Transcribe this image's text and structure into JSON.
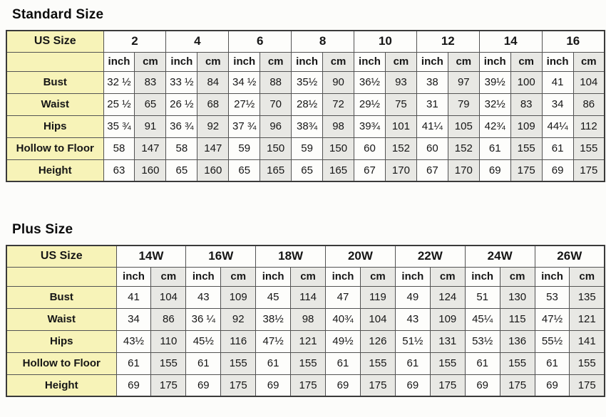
{
  "colors": {
    "label_column_bg": "#f7f3b8",
    "cm_column_bg": "#e8e8e4",
    "inch_column_bg": "#fdfdfb",
    "grid_border": "#535353",
    "text": "#161616"
  },
  "chart_data": [
    {
      "type": "table",
      "title": "Standard Size",
      "corner_label": "US Size",
      "unit_labels": [
        "inch",
        "cm"
      ],
      "sizes": [
        "2",
        "4",
        "6",
        "8",
        "10",
        "12",
        "14",
        "16"
      ],
      "rows": [
        {
          "label": "Bust",
          "pairs": [
            [
              "32 ½",
              "83"
            ],
            [
              "33 ½",
              "84"
            ],
            [
              "34 ½",
              "88"
            ],
            [
              "35½",
              "90"
            ],
            [
              "36½",
              "93"
            ],
            [
              "38",
              "97"
            ],
            [
              "39½",
              "100"
            ],
            [
              "41",
              "104"
            ]
          ]
        },
        {
          "label": "Waist",
          "pairs": [
            [
              "25 ½",
              "65"
            ],
            [
              "26 ½",
              "68"
            ],
            [
              "27½",
              "70"
            ],
            [
              "28½",
              "72"
            ],
            [
              "29½",
              "75"
            ],
            [
              "31",
              "79"
            ],
            [
              "32½",
              "83"
            ],
            [
              "34",
              "86"
            ]
          ]
        },
        {
          "label": "Hips",
          "pairs": [
            [
              "35 ¾",
              "91"
            ],
            [
              "36 ¾",
              "92"
            ],
            [
              "37 ¾",
              "96"
            ],
            [
              "38¾",
              "98"
            ],
            [
              "39¾",
              "101"
            ],
            [
              "41¼",
              "105"
            ],
            [
              "42¾",
              "109"
            ],
            [
              "44¼",
              "112"
            ]
          ]
        },
        {
          "label": "Hollow to Floor",
          "pairs": [
            [
              "58",
              "147"
            ],
            [
              "58",
              "147"
            ],
            [
              "59",
              "150"
            ],
            [
              "59",
              "150"
            ],
            [
              "60",
              "152"
            ],
            [
              "60",
              "152"
            ],
            [
              "61",
              "155"
            ],
            [
              "61",
              "155"
            ]
          ]
        },
        {
          "label": "Height",
          "pairs": [
            [
              "63",
              "160"
            ],
            [
              "65",
              "160"
            ],
            [
              "65",
              "165"
            ],
            [
              "65",
              "165"
            ],
            [
              "67",
              "170"
            ],
            [
              "67",
              "170"
            ],
            [
              "69",
              "175"
            ],
            [
              "69",
              "175"
            ]
          ]
        }
      ]
    },
    {
      "type": "table",
      "title": "Plus Size",
      "corner_label": "US Size",
      "unit_labels": [
        "inch",
        "cm"
      ],
      "sizes": [
        "14W",
        "16W",
        "18W",
        "20W",
        "22W",
        "24W",
        "26W"
      ],
      "rows": [
        {
          "label": "Bust",
          "pairs": [
            [
              "41",
              "104"
            ],
            [
              "43",
              "109"
            ],
            [
              "45",
              "114"
            ],
            [
              "47",
              "119"
            ],
            [
              "49",
              "124"
            ],
            [
              "51",
              "130"
            ],
            [
              "53",
              "135"
            ]
          ]
        },
        {
          "label": "Waist",
          "pairs": [
            [
              "34",
              "86"
            ],
            [
              "36 ¼",
              "92"
            ],
            [
              "38½",
              "98"
            ],
            [
              "40¾",
              "104"
            ],
            [
              "43",
              "109"
            ],
            [
              "45¼",
              "115"
            ],
            [
              "47½",
              "121"
            ]
          ]
        },
        {
          "label": "Hips",
          "pairs": [
            [
              "43½",
              "110"
            ],
            [
              "45½",
              "116"
            ],
            [
              "47½",
              "121"
            ],
            [
              "49½",
              "126"
            ],
            [
              "51½",
              "131"
            ],
            [
              "53½",
              "136"
            ],
            [
              "55½",
              "141"
            ]
          ]
        },
        {
          "label": "Hollow to Floor",
          "pairs": [
            [
              "61",
              "155"
            ],
            [
              "61",
              "155"
            ],
            [
              "61",
              "155"
            ],
            [
              "61",
              "155"
            ],
            [
              "61",
              "155"
            ],
            [
              "61",
              "155"
            ],
            [
              "61",
              "155"
            ]
          ]
        },
        {
          "label": "Height",
          "pairs": [
            [
              "69",
              "175"
            ],
            [
              "69",
              "175"
            ],
            [
              "69",
              "175"
            ],
            [
              "69",
              "175"
            ],
            [
              "69",
              "175"
            ],
            [
              "69",
              "175"
            ],
            [
              "69",
              "175"
            ]
          ]
        }
      ]
    }
  ]
}
